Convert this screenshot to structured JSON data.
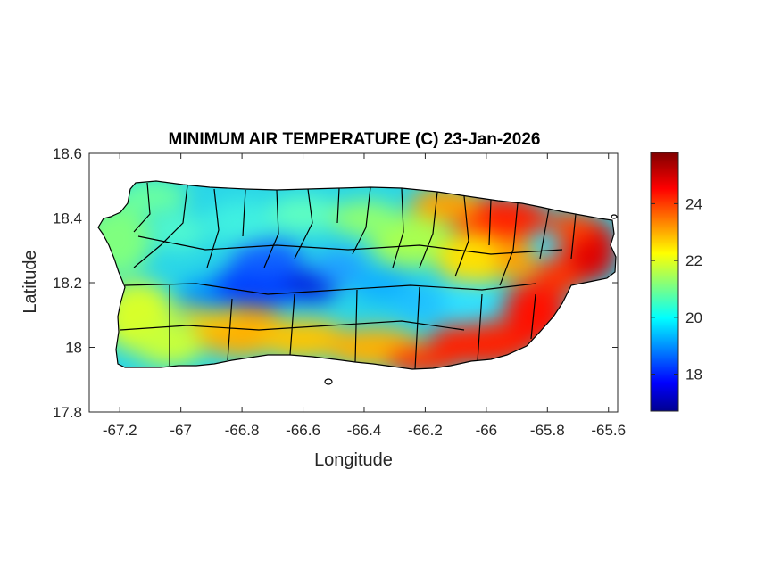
{
  "chart_data": {
    "type": "heatmap",
    "title": "MINIMUM AIR TEMPERATURE (C) 23-Jan-2026",
    "xlabel": "Longitude",
    "ylabel": "Latitude",
    "xlim": [
      -67.3,
      -65.57
    ],
    "ylim": [
      17.8,
      18.6
    ],
    "xticks": [
      -67.2,
      -67,
      -66.8,
      -66.6,
      -66.4,
      -66.2,
      -66,
      -65.8,
      -65.6
    ],
    "yticks": [
      17.8,
      18,
      18.2,
      18.4,
      18.6
    ],
    "xtick_labels": [
      "-67.2",
      "-67",
      "-66.8",
      "-66.6",
      "-66.4",
      "-66.2",
      "-66",
      "-65.8",
      "-65.6"
    ],
    "ytick_labels": [
      "17.8",
      "18",
      "18.2",
      "18.4",
      "18.6"
    ],
    "colorbar": {
      "colormap": "jet",
      "range": [
        16.7,
        25.8
      ],
      "ticks": [
        18,
        20,
        22,
        24
      ],
      "tick_labels": [
        "18",
        "20",
        "22",
        "24"
      ]
    },
    "grid": false
  }
}
